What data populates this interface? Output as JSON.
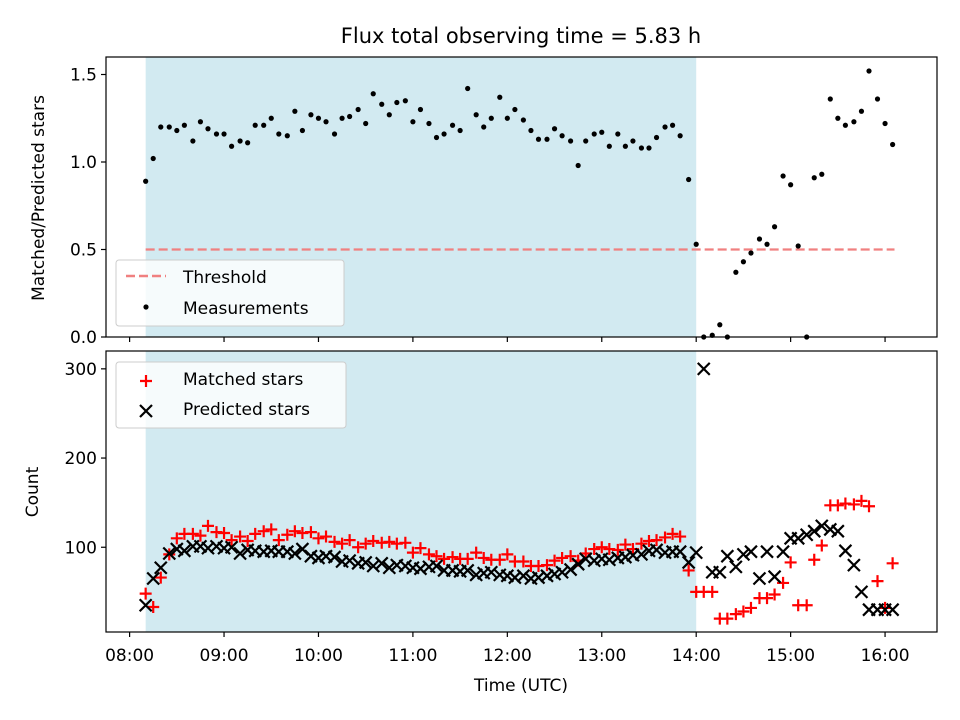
{
  "title": "Flux total observing time = 5.83 h",
  "colors": {
    "shade": "#add8e6",
    "threshold": "#f08080",
    "matched": "#ff0000",
    "predicted": "#000000",
    "measure": "#000000"
  },
  "chart_data": [
    {
      "type": "scatter",
      "name": "ratio",
      "ylabel": "Matched/Predicted stars",
      "ylim": [
        0,
        1.6
      ],
      "yticks": [
        0.0,
        0.5,
        1.0,
        1.5
      ],
      "ytick_labels": [
        "0.0",
        "0.5",
        "1.0",
        "1.5"
      ],
      "xlim": [
        7.75,
        16.55
      ],
      "shaded_span": [
        8.17,
        14.0
      ],
      "threshold": {
        "label": "Threshold",
        "value": 0.5,
        "x_range": [
          8.17,
          16.1
        ]
      },
      "legend": {
        "position": "lower-left",
        "entries": [
          "Threshold",
          "Measurements"
        ]
      },
      "series": [
        {
          "name": "Measurements",
          "x": [
            8.17,
            8.25,
            8.33,
            8.42,
            8.5,
            8.58,
            8.67,
            8.75,
            8.83,
            8.92,
            9.0,
            9.08,
            9.17,
            9.25,
            9.33,
            9.42,
            9.5,
            9.58,
            9.67,
            9.75,
            9.83,
            9.92,
            10.0,
            10.08,
            10.17,
            10.25,
            10.33,
            10.42,
            10.5,
            10.58,
            10.67,
            10.75,
            10.83,
            10.92,
            11.0,
            11.08,
            11.17,
            11.25,
            11.33,
            11.42,
            11.5,
            11.58,
            11.67,
            11.75,
            11.83,
            11.92,
            12.0,
            12.08,
            12.17,
            12.25,
            12.33,
            12.42,
            12.5,
            12.58,
            12.67,
            12.75,
            12.83,
            12.92,
            13.0,
            13.08,
            13.17,
            13.25,
            13.33,
            13.42,
            13.5,
            13.58,
            13.67,
            13.75,
            13.83,
            13.92,
            14.0,
            14.08,
            14.17,
            14.25,
            14.33,
            14.42,
            14.5,
            14.58,
            14.67,
            14.75,
            14.83,
            14.92,
            15.0,
            15.08,
            15.17,
            15.25,
            15.33,
            15.42,
            15.5,
            15.58,
            15.67,
            15.75,
            15.83,
            15.92,
            16.0,
            16.08
          ],
          "values": [
            0.89,
            1.02,
            1.2,
            1.2,
            1.18,
            1.21,
            1.12,
            1.23,
            1.19,
            1.16,
            1.16,
            1.09,
            1.12,
            1.11,
            1.21,
            1.21,
            1.25,
            1.16,
            1.15,
            1.29,
            1.18,
            1.27,
            1.25,
            1.23,
            1.16,
            1.25,
            1.26,
            1.3,
            1.22,
            1.39,
            1.33,
            1.27,
            1.34,
            1.35,
            1.23,
            1.3,
            1.22,
            1.14,
            1.16,
            1.21,
            1.18,
            1.42,
            1.27,
            1.2,
            1.25,
            1.37,
            1.25,
            1.3,
            1.24,
            1.18,
            1.13,
            1.13,
            1.19,
            1.15,
            1.12,
            0.98,
            1.12,
            1.16,
            1.17,
            1.09,
            1.16,
            1.09,
            1.12,
            1.08,
            1.08,
            1.14,
            1.2,
            1.21,
            1.15,
            0.9,
            0.53,
            0.0,
            0.01,
            0.07,
            0.0,
            0.37,
            0.43,
            0.48,
            0.56,
            0.53,
            0.63,
            0.92,
            0.87,
            0.52,
            0.0,
            0.91,
            0.93,
            1.36,
            1.25,
            1.21,
            1.23,
            1.29,
            1.52,
            1.36,
            1.22,
            1.1
          ]
        }
      ]
    },
    {
      "type": "scatter",
      "name": "counts",
      "title": "",
      "xlabel": "Time (UTC)",
      "ylabel": "Count",
      "ylim": [
        5,
        320
      ],
      "yticks": [
        100,
        200,
        300
      ],
      "ytick_labels": [
        "100",
        "200",
        "300"
      ],
      "xlim": [
        7.75,
        16.55
      ],
      "xticks": [
        8,
        9,
        10,
        11,
        12,
        13,
        14,
        15,
        16
      ],
      "xtick_labels": [
        "08:00",
        "09:00",
        "10:00",
        "11:00",
        "12:00",
        "13:00",
        "14:00",
        "15:00",
        "16:00"
      ],
      "shaded_span": [
        8.17,
        14.0
      ],
      "legend": {
        "position": "top-left",
        "entries": [
          "Matched stars",
          "Predicted stars"
        ]
      },
      "series": [
        {
          "name": "Matched stars",
          "marker": "plus",
          "x": [
            8.17,
            8.25,
            8.33,
            8.42,
            8.5,
            8.58,
            8.67,
            8.75,
            8.83,
            8.92,
            9.0,
            9.08,
            9.17,
            9.25,
            9.33,
            9.42,
            9.5,
            9.58,
            9.67,
            9.75,
            9.83,
            9.92,
            10.0,
            10.08,
            10.17,
            10.25,
            10.33,
            10.42,
            10.5,
            10.58,
            10.67,
            10.75,
            10.83,
            10.92,
            11.0,
            11.08,
            11.17,
            11.25,
            11.33,
            11.42,
            11.5,
            11.58,
            11.67,
            11.75,
            11.83,
            11.92,
            12.0,
            12.08,
            12.17,
            12.25,
            12.33,
            12.42,
            12.5,
            12.58,
            12.67,
            12.75,
            12.83,
            12.92,
            13.0,
            13.08,
            13.17,
            13.25,
            13.33,
            13.42,
            13.5,
            13.58,
            13.67,
            13.75,
            13.83,
            13.92,
            14.0,
            14.08,
            14.17,
            14.25,
            14.33,
            14.42,
            14.5,
            14.58,
            14.67,
            14.75,
            14.83,
            14.92,
            15.0,
            15.08,
            15.17,
            15.25,
            15.33,
            15.42,
            15.5,
            15.58,
            15.67,
            15.75,
            15.83,
            15.92,
            16.0,
            16.08
          ],
          "values": [
            48,
            33,
            66,
            92,
            110,
            115,
            115,
            113,
            124,
            117,
            116,
            108,
            112,
            107,
            115,
            118,
            120,
            108,
            114,
            118,
            116,
            117,
            110,
            112,
            106,
            104,
            108,
            100,
            104,
            107,
            105,
            106,
            104,
            105,
            94,
            99,
            92,
            90,
            87,
            89,
            87,
            87,
            94,
            88,
            86,
            86,
            92,
            84,
            84,
            79,
            79,
            80,
            85,
            88,
            90,
            85,
            93,
            98,
            100,
            98,
            97,
            103,
            98,
            104,
            107,
            108,
            111,
            115,
            112,
            74,
            50,
            50,
            50,
            20,
            20,
            25,
            28,
            32,
            43,
            43,
            47,
            60,
            83,
            35,
            35,
            86,
            102,
            147,
            147,
            149,
            148,
            152,
            146,
            62,
            32,
            82
          ]
        },
        {
          "name": "Predicted stars",
          "marker": "x",
          "x": [
            8.17,
            8.25,
            8.33,
            8.42,
            8.5,
            8.58,
            8.67,
            8.75,
            8.83,
            8.92,
            9.0,
            9.08,
            9.17,
            9.25,
            9.33,
            9.42,
            9.5,
            9.58,
            9.67,
            9.75,
            9.83,
            9.92,
            10.0,
            10.08,
            10.17,
            10.25,
            10.33,
            10.42,
            10.5,
            10.58,
            10.67,
            10.75,
            10.83,
            10.92,
            11.0,
            11.08,
            11.17,
            11.25,
            11.33,
            11.42,
            11.5,
            11.58,
            11.67,
            11.75,
            11.83,
            11.92,
            12.0,
            12.08,
            12.17,
            12.25,
            12.33,
            12.42,
            12.5,
            12.58,
            12.67,
            12.75,
            12.83,
            12.92,
            13.0,
            13.08,
            13.17,
            13.25,
            13.33,
            13.42,
            13.5,
            13.58,
            13.67,
            13.75,
            13.83,
            13.92,
            14.0,
            14.08,
            14.17,
            14.25,
            14.33,
            14.42,
            14.5,
            14.58,
            14.67,
            14.75,
            14.83,
            14.92,
            15.0,
            15.08,
            15.17,
            15.25,
            15.33,
            15.42,
            15.5,
            15.58,
            15.67,
            15.75,
            15.83,
            15.92,
            16.0,
            16.08
          ],
          "values": [
            35,
            65,
            77,
            93,
            98,
            96,
            101,
            101,
            99,
            101,
            99,
            100,
            93,
            97,
            96,
            95,
            96,
            95,
            95,
            93,
            98,
            90,
            88,
            90,
            89,
            84,
            85,
            82,
            83,
            79,
            82,
            77,
            80,
            79,
            77,
            76,
            78,
            79,
            74,
            74,
            73,
            74,
            69,
            71,
            72,
            69,
            68,
            66,
            68,
            65,
            66,
            68,
            70,
            72,
            75,
            81,
            87,
            85,
            87,
            86,
            88,
            89,
            91,
            92,
            96,
            97,
            94,
            95,
            95,
            83,
            94,
            300,
            72,
            72,
            90,
            78,
            92,
            95,
            65,
            95,
            67,
            95,
            110,
            110,
            114,
            118,
            124,
            120,
            118,
            96,
            80,
            50,
            30,
            30,
            30,
            30
          ]
        }
      ]
    }
  ]
}
